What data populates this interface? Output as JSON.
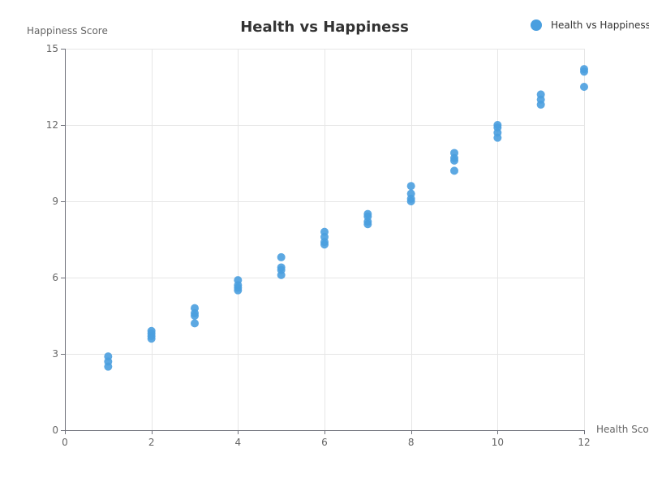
{
  "chart_data": {
    "type": "scatter",
    "title": "Health vs Happiness",
    "xlabel": "Health Score",
    "ylabel": "Happiness Score",
    "xlim": [
      0,
      12
    ],
    "ylim": [
      0,
      15
    ],
    "x_ticks": [
      0,
      2,
      4,
      6,
      8,
      10,
      12
    ],
    "y_ticks": [
      0,
      3,
      6,
      9,
      12,
      15
    ],
    "grid": true,
    "legend_position": "top-right",
    "series": [
      {
        "name": "Health vs Happiness",
        "color": "#4a9fdf",
        "points": [
          {
            "x": 1,
            "y": 2.5
          },
          {
            "x": 1,
            "y": 2.7
          },
          {
            "x": 1,
            "y": 2.9
          },
          {
            "x": 2,
            "y": 3.6
          },
          {
            "x": 2,
            "y": 3.7
          },
          {
            "x": 2,
            "y": 3.8
          },
          {
            "x": 2,
            "y": 3.9
          },
          {
            "x": 3,
            "y": 4.2
          },
          {
            "x": 3,
            "y": 4.5
          },
          {
            "x": 3,
            "y": 4.6
          },
          {
            "x": 3,
            "y": 4.8
          },
          {
            "x": 4,
            "y": 5.5
          },
          {
            "x": 4,
            "y": 5.6
          },
          {
            "x": 4,
            "y": 5.7
          },
          {
            "x": 4,
            "y": 5.9
          },
          {
            "x": 5,
            "y": 6.1
          },
          {
            "x": 5,
            "y": 6.3
          },
          {
            "x": 5,
            "y": 6.4
          },
          {
            "x": 5,
            "y": 6.8
          },
          {
            "x": 6,
            "y": 7.3
          },
          {
            "x": 6,
            "y": 7.4
          },
          {
            "x": 6,
            "y": 7.6
          },
          {
            "x": 6,
            "y": 7.8
          },
          {
            "x": 7,
            "y": 8.1
          },
          {
            "x": 7,
            "y": 8.2
          },
          {
            "x": 7,
            "y": 8.4
          },
          {
            "x": 7,
            "y": 8.5
          },
          {
            "x": 8,
            "y": 9.0
          },
          {
            "x": 8,
            "y": 9.1
          },
          {
            "x": 8,
            "y": 9.3
          },
          {
            "x": 8,
            "y": 9.6
          },
          {
            "x": 9,
            "y": 10.2
          },
          {
            "x": 9,
            "y": 10.6
          },
          {
            "x": 9,
            "y": 10.7
          },
          {
            "x": 9,
            "y": 10.9
          },
          {
            "x": 10,
            "y": 11.5
          },
          {
            "x": 10,
            "y": 11.7
          },
          {
            "x": 10,
            "y": 11.9
          },
          {
            "x": 10,
            "y": 12.0
          },
          {
            "x": 11,
            "y": 12.8
          },
          {
            "x": 11,
            "y": 13.0
          },
          {
            "x": 11,
            "y": 13.2
          },
          {
            "x": 12,
            "y": 13.5
          },
          {
            "x": 12,
            "y": 14.1
          },
          {
            "x": 12,
            "y": 14.2
          }
        ]
      }
    ]
  }
}
